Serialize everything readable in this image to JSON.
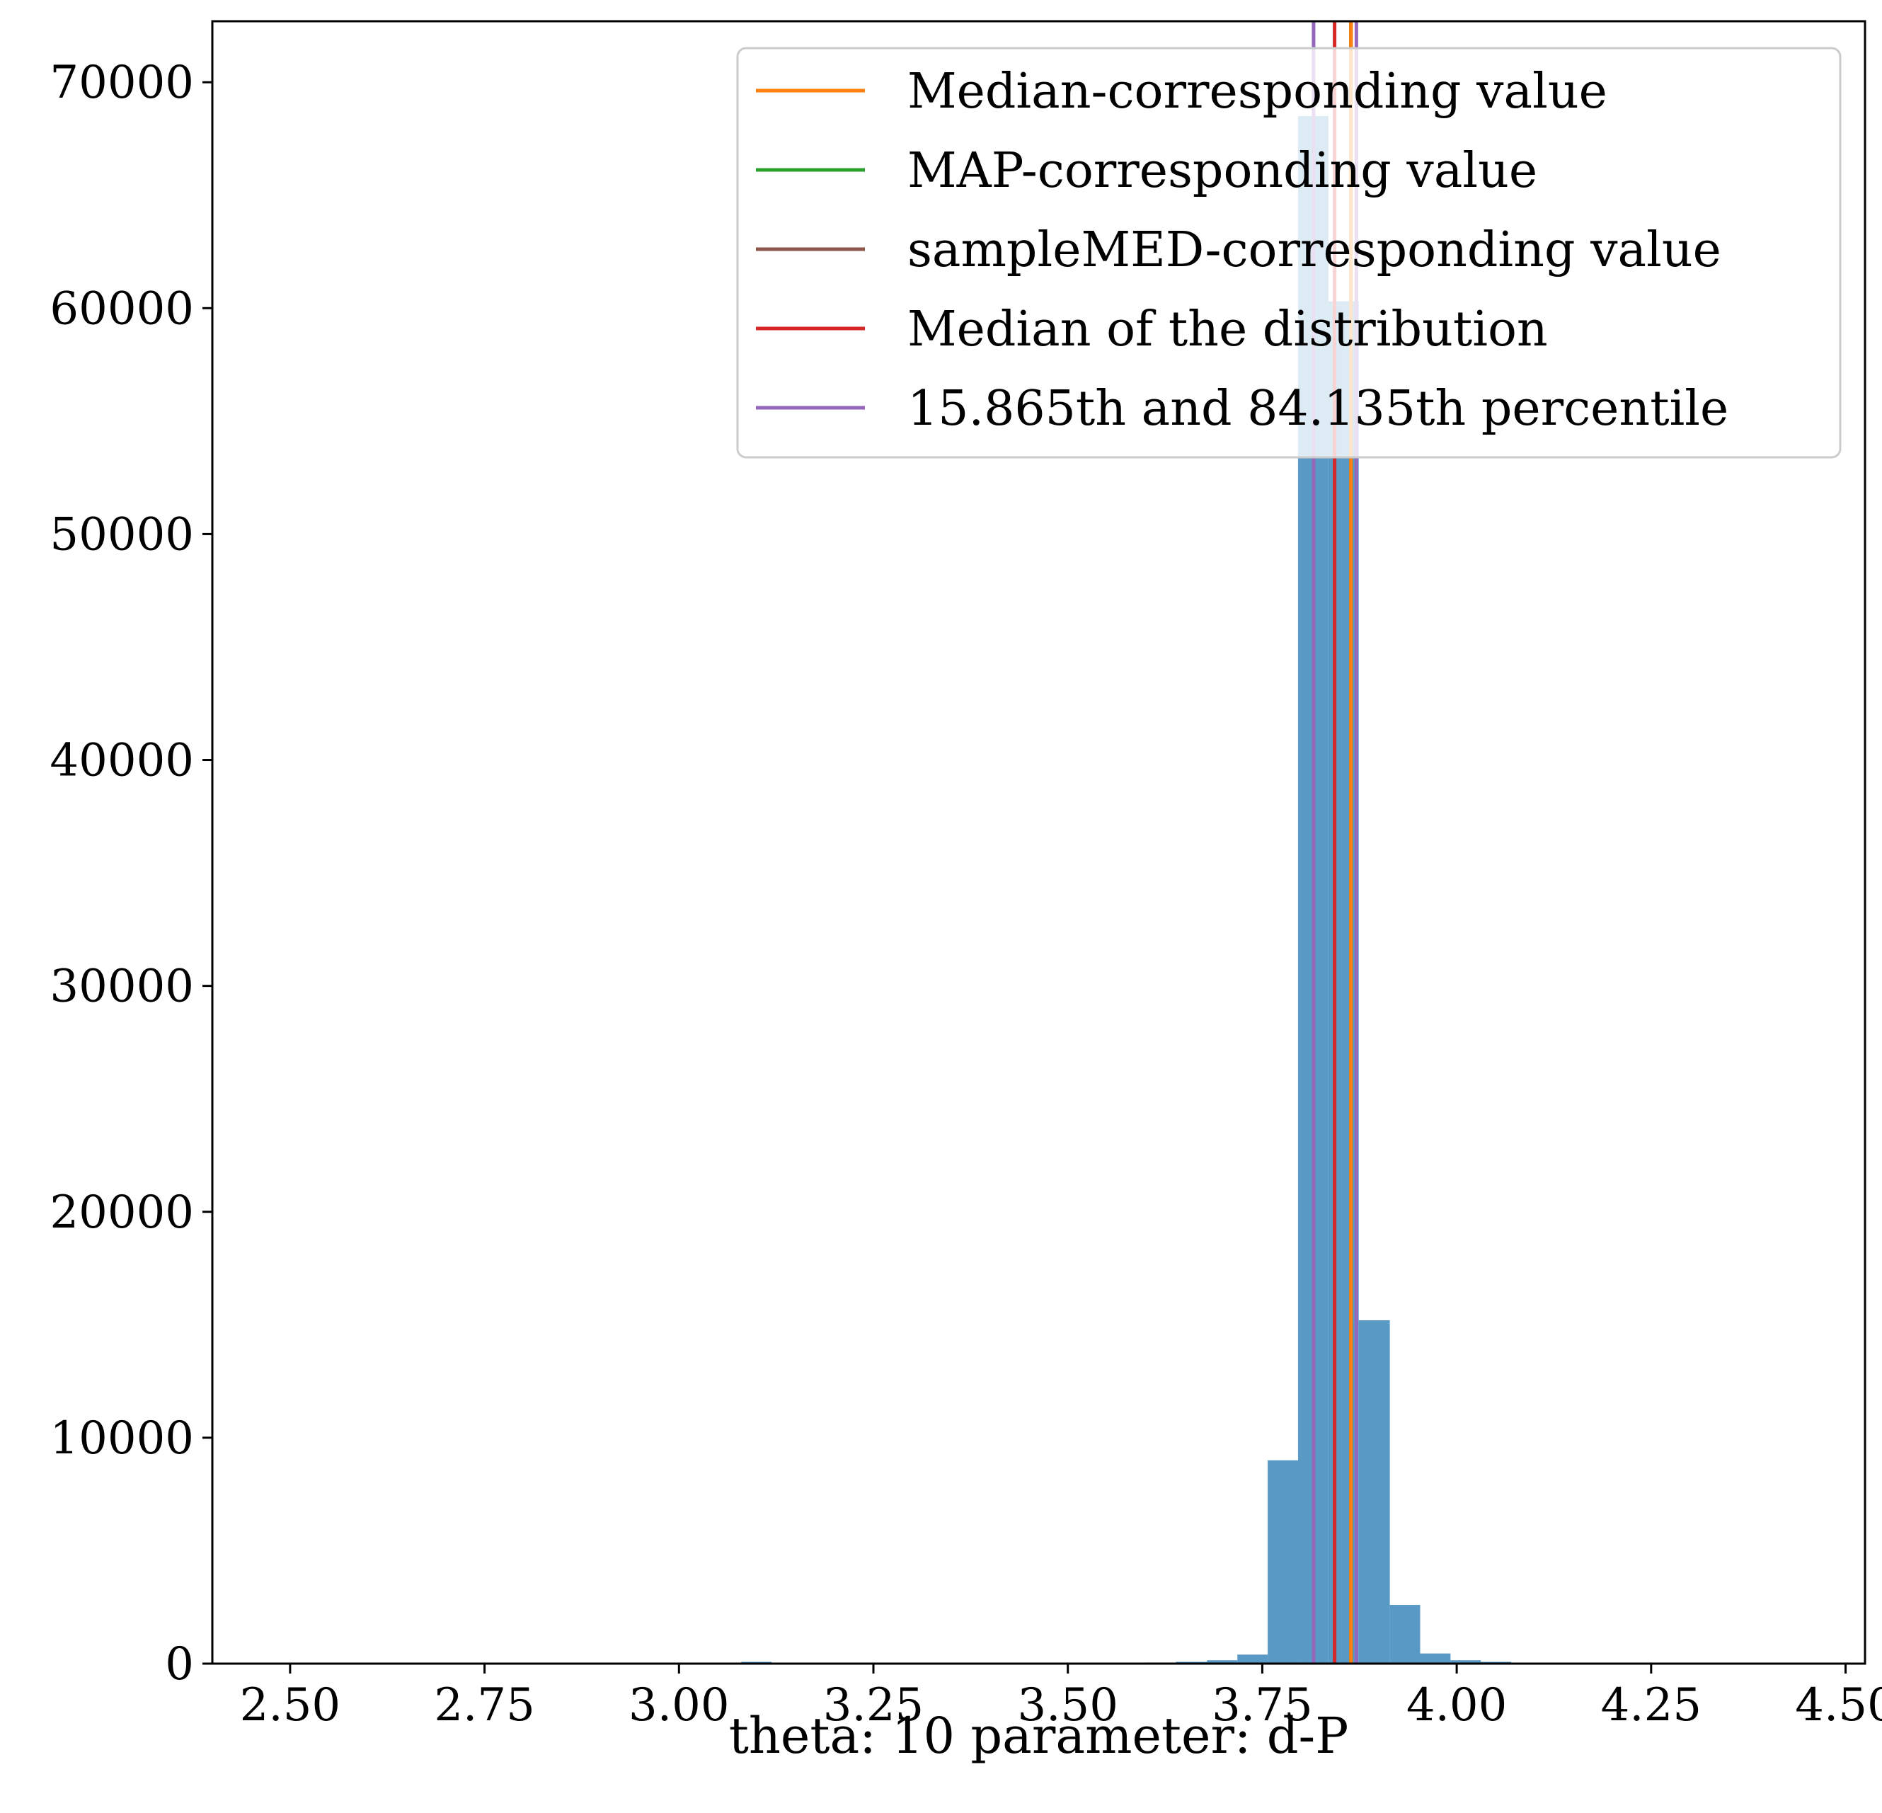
{
  "chart_data": {
    "type": "bar",
    "xlabel": "theta: 10 parameter: d-P",
    "ylabel": "",
    "xlim": [
      2.4,
      4.525
    ],
    "ylim": [
      0,
      72700
    ],
    "grid": false,
    "legend_placement": "top-right",
    "x_ticks": [
      2.5,
      2.75,
      3.0,
      3.25,
      3.5,
      3.75,
      4.0,
      4.25,
      4.5
    ],
    "x_tick_labels": [
      "2.50",
      "2.75",
      "3.00",
      "3.25",
      "3.50",
      "3.75",
      "4.00",
      "4.25",
      "4.50"
    ],
    "y_ticks": [
      0,
      10000,
      20000,
      30000,
      40000,
      50000,
      60000,
      70000
    ],
    "y_tick_labels": [
      "0",
      "10000",
      "20000",
      "30000",
      "40000",
      "50000",
      "60000",
      "70000"
    ],
    "histogram": {
      "bin_edges": [
        3.08,
        3.119,
        3.6,
        3.639,
        3.679,
        3.718,
        3.757,
        3.796,
        3.835,
        3.874,
        3.914,
        3.953,
        3.992,
        4.031,
        4.07
      ],
      "counts": [
        80,
        0,
        50,
        80,
        150,
        400,
        9000,
        68500,
        60300,
        15200,
        2600,
        450,
        150,
        80
      ],
      "color": "#5899c6"
    },
    "vertical_lines": [
      {
        "name": "Median-corresponding value",
        "x": 3.864,
        "color": "#ff7f0e"
      },
      {
        "name": "MAP-corresponding value",
        "x": 3.864,
        "color": "#2ca02c"
      },
      {
        "name": "sampleMED-corresponding value",
        "x": 3.864,
        "color": "#8c564b"
      },
      {
        "name": "Median of the distribution",
        "x": 3.843,
        "color": "#d62728"
      },
      {
        "name": "15.865th and 84.135th percentile",
        "x": 3.816,
        "color": "#9467bd"
      },
      {
        "name": "",
        "x": 3.871,
        "color": "#9467bd"
      }
    ],
    "legend": [
      {
        "label": "Median-corresponding value",
        "color": "#ff7f0e"
      },
      {
        "label": "MAP-corresponding value",
        "color": "#2ca02c"
      },
      {
        "label": "sampleMED-corresponding value",
        "color": "#8c564b"
      },
      {
        "label": "Median of the distribution",
        "color": "#d62728"
      },
      {
        "label": "15.865th and 84.135th percentile",
        "color": "#9467bd"
      }
    ]
  }
}
